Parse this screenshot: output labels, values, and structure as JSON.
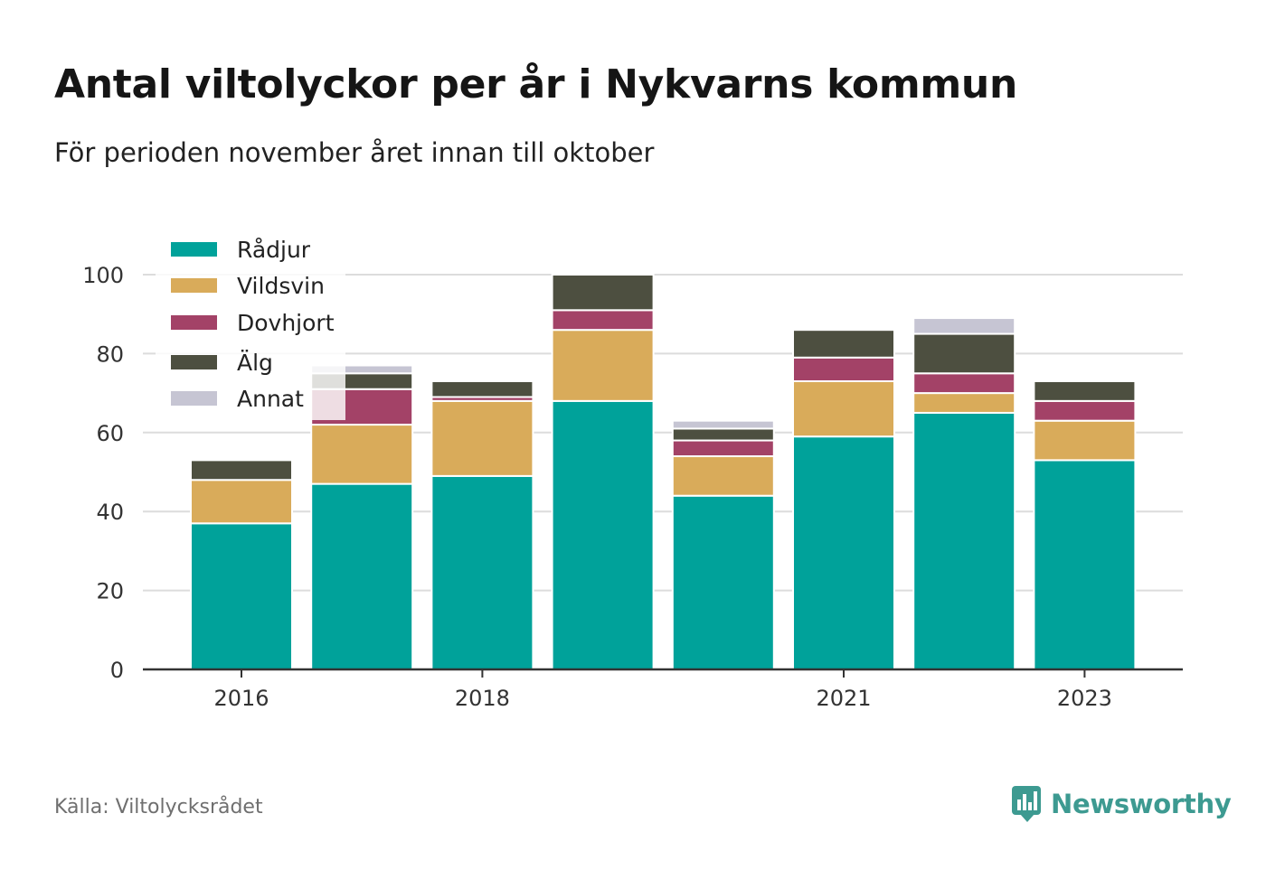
{
  "title": "Antal viltolyckor per år i Nykvarns kommun",
  "subtitle": "För perioden november året innan till oktober",
  "source": "Källa: Viltolycksrådet",
  "brand": "Newsworthy",
  "chart_data": {
    "type": "bar",
    "stacked": true,
    "x": [
      2016,
      2017,
      2018,
      2019,
      2020,
      2021,
      2022,
      2023
    ],
    "x_tick_labels": [
      "2016",
      "2018",
      "2021",
      "2023"
    ],
    "y_ticks": [
      0,
      20,
      40,
      60,
      80,
      100
    ],
    "ylim": [
      0,
      110
    ],
    "grid": true,
    "legend_position": "top-left",
    "series": [
      {
        "name": "Rådjur",
        "color": "#00a29a",
        "values": [
          37,
          47,
          49,
          68,
          44,
          59,
          65,
          53
        ]
      },
      {
        "name": "Vildsvin",
        "color": "#d9ab5a",
        "values": [
          11,
          15,
          19,
          18,
          10,
          14,
          5,
          10
        ]
      },
      {
        "name": "Dovhjort",
        "color": "#a34267",
        "values": [
          0,
          9,
          1,
          5,
          4,
          6,
          5,
          5
        ]
      },
      {
        "name": "Älg",
        "color": "#4d4f40",
        "values": [
          5,
          4,
          4,
          9,
          3,
          7,
          10,
          5
        ]
      },
      {
        "name": "Annat",
        "color": "#c6c5d3",
        "values": [
          0,
          2,
          0,
          0,
          2,
          0,
          4,
          0
        ]
      }
    ]
  }
}
